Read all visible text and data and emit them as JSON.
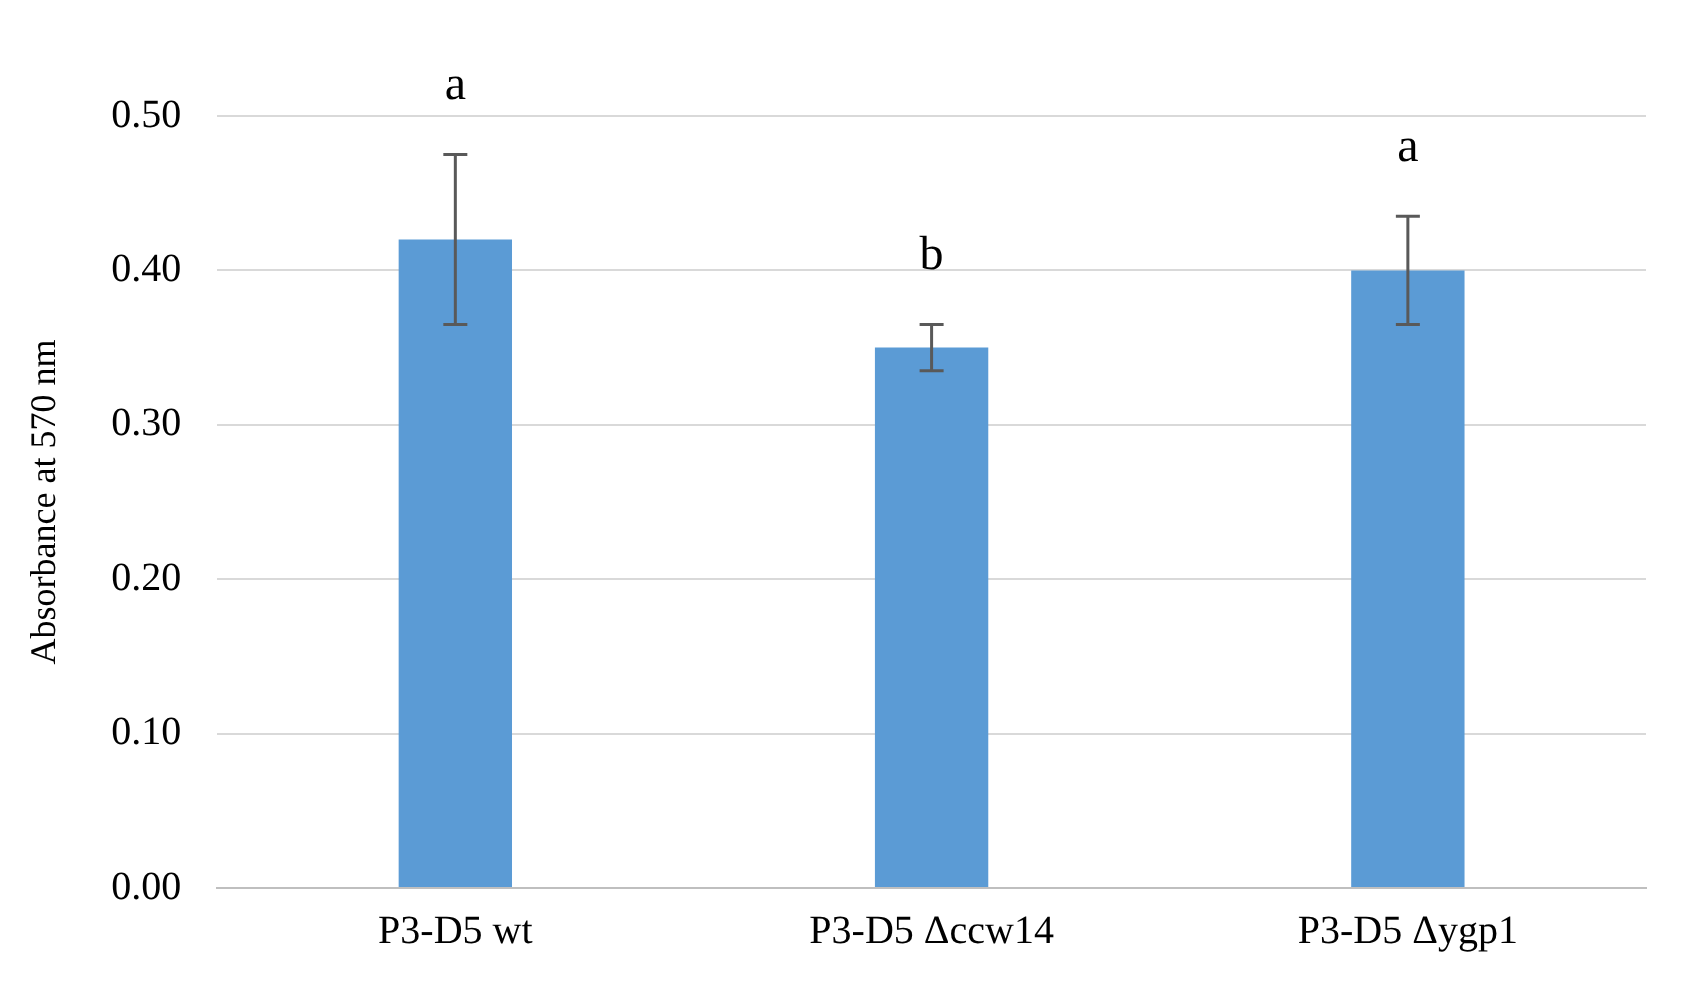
{
  "chart_data": {
    "type": "bar",
    "ylabel": "Absorbance at 570 nm",
    "categories": [
      "P3-D5 wt",
      "P3-D5 Δccw14",
      "P3-D5 Δygp1"
    ],
    "values": [
      0.42,
      0.35,
      0.4
    ],
    "errors": [
      0.055,
      0.015,
      0.035
    ],
    "color": "#5b9bd5",
    "ylim": [
      0,
      0.5
    ],
    "yticks": [
      {
        "value": 0,
        "label": "0.00"
      },
      {
        "value": 0.1,
        "label": "0.10"
      },
      {
        "value": 0.2,
        "label": "0.20"
      },
      {
        "value": 0.3,
        "label": "0.30"
      },
      {
        "value": 0.4,
        "label": "0.40"
      },
      {
        "value": 0.5,
        "label": "0.50"
      }
    ],
    "grid": "y",
    "legend": false,
    "annotations": [
      {
        "text": "a",
        "x": "P3-D5 wt",
        "y": 0.475
      },
      {
        "text": "b",
        "x": "P3-D5 Δccw14",
        "y": 0.365
      },
      {
        "text": "a",
        "x": "P3-D5 Δygp1",
        "y": 0.435
      }
    ]
  }
}
